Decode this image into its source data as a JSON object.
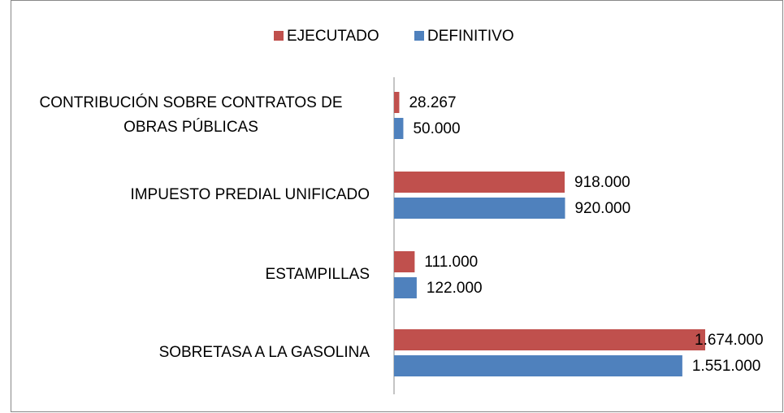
{
  "chart_data": {
    "type": "bar",
    "orientation": "horizontal",
    "categories": [
      "CONTRIBUCIÓN SOBRE CONTRATOS DE OBRAS PÚBLICAS",
      "IMPUESTO PREDIAL UNIFICADO",
      "ESTAMPILLAS",
      "SOBRETASA A LA GASOLINA"
    ],
    "series": [
      {
        "name": "EJECUTADO",
        "color": "#c0504d",
        "values": [
          28267,
          918000,
          111000,
          1674000
        ],
        "value_labels": [
          "28.267",
          "918.000",
          "111.000",
          "1.674.000"
        ]
      },
      {
        "name": "DEFINITIVO",
        "color": "#4f81bd",
        "values": [
          50000,
          920000,
          122000,
          1551000
        ],
        "value_labels": [
          "50.000",
          "920.000",
          "122.000",
          "1.551.000"
        ]
      }
    ],
    "legend": "top"
  }
}
